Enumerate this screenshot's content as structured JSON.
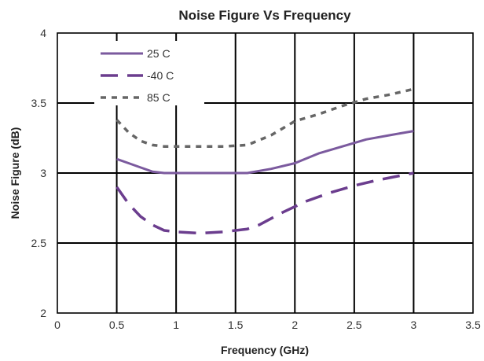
{
  "chart_data": {
    "type": "line",
    "title": "Noise Figure Vs Frequency",
    "xlabel": "Frequency (GHz)",
    "ylabel": "Noise Figure (dB)",
    "xlim": [
      0,
      3.5
    ],
    "ylim": [
      2,
      4
    ],
    "xticks": [
      "0",
      "0.5",
      "1",
      "1.5",
      "2",
      "2.5",
      "3",
      "3.5"
    ],
    "yticks": [
      "2",
      "2.5",
      "3",
      "3.5",
      "4"
    ],
    "grid": true,
    "legend_position": "top-left",
    "series": [
      {
        "name": "25 C",
        "color": "#7b5a9e",
        "style": "solid",
        "x": [
          0.5,
          0.6,
          0.7,
          0.8,
          0.9,
          1.0,
          1.2,
          1.4,
          1.6,
          1.8,
          2.0,
          2.2,
          2.4,
          2.6,
          2.8,
          3.0
        ],
        "y": [
          3.1,
          3.07,
          3.04,
          3.01,
          3.0,
          3.0,
          3.0,
          3.0,
          3.0,
          3.03,
          3.07,
          3.14,
          3.19,
          3.24,
          3.27,
          3.3
        ]
      },
      {
        "name": "-40 C",
        "color": "#6b3d8e",
        "style": "dashed",
        "x": [
          0.5,
          0.6,
          0.7,
          0.8,
          0.9,
          1.0,
          1.2,
          1.4,
          1.6,
          1.7,
          1.9,
          2.1,
          2.3,
          2.5,
          2.7,
          3.0
        ],
        "y": [
          2.9,
          2.78,
          2.69,
          2.63,
          2.59,
          2.58,
          2.57,
          2.58,
          2.6,
          2.63,
          2.72,
          2.8,
          2.86,
          2.91,
          2.95,
          3.0
        ]
      },
      {
        "name": "85 C",
        "color": "#666666",
        "style": "dotted",
        "x": [
          0.5,
          0.6,
          0.7,
          0.8,
          0.9,
          1.0,
          1.2,
          1.4,
          1.6,
          1.8,
          2.0,
          2.2,
          2.4,
          2.6,
          2.8,
          3.0
        ],
        "y": [
          3.38,
          3.29,
          3.23,
          3.2,
          3.19,
          3.19,
          3.19,
          3.19,
          3.2,
          3.27,
          3.37,
          3.42,
          3.48,
          3.53,
          3.56,
          3.6
        ]
      }
    ]
  }
}
